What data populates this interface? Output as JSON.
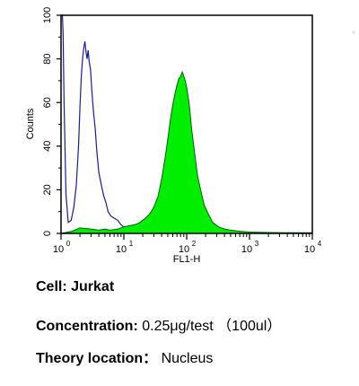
{
  "chart_data": {
    "type": "histogram",
    "xlabel": "FL1-H",
    "ylabel": "Counts",
    "x_scale": "log",
    "xlim": [
      1,
      10000
    ],
    "ylim": [
      0,
      100
    ],
    "x_ticks": [
      {
        "value": 1,
        "base": "10",
        "exp": "0"
      },
      {
        "value": 10,
        "base": "10",
        "exp": "1"
      },
      {
        "value": 100,
        "base": "10",
        "exp": "2"
      },
      {
        "value": 1000,
        "base": "10",
        "exp": "3"
      },
      {
        "value": 10000,
        "base": "10",
        "exp": "4"
      }
    ],
    "y_ticks": [
      "0",
      "20",
      "40",
      "60",
      "80",
      "100"
    ],
    "series": [
      {
        "role": "control",
        "style": "outline",
        "color": "#1a1aa8",
        "points": [
          [
            1.0,
            100
          ],
          [
            1.05,
            100
          ],
          [
            1.08,
            92
          ],
          [
            1.12,
            60
          ],
          [
            1.2,
            18
          ],
          [
            1.3,
            5
          ],
          [
            1.45,
            6
          ],
          [
            1.6,
            12
          ],
          [
            1.75,
            22
          ],
          [
            1.9,
            40
          ],
          [
            2.0,
            58
          ],
          [
            2.1,
            72
          ],
          [
            2.2,
            80
          ],
          [
            2.3,
            85
          ],
          [
            2.4,
            88
          ],
          [
            2.5,
            83
          ],
          [
            2.6,
            80
          ],
          [
            2.7,
            84
          ],
          [
            2.8,
            79
          ],
          [
            2.95,
            75
          ],
          [
            3.1,
            65
          ],
          [
            3.3,
            55
          ],
          [
            3.5,
            48
          ],
          [
            3.7,
            38
          ],
          [
            4.0,
            28
          ],
          [
            4.4,
            22
          ],
          [
            4.8,
            17
          ],
          [
            5.2,
            14
          ],
          [
            5.6,
            10
          ],
          [
            6.2,
            8
          ],
          [
            7.0,
            7
          ],
          [
            8.0,
            6
          ],
          [
            9.0,
            4
          ],
          [
            10.0,
            3
          ],
          [
            11.5,
            2
          ],
          [
            13.0,
            1.5
          ],
          [
            15.0,
            1
          ],
          [
            20.0,
            0.5
          ],
          [
            30.0,
            0.3
          ],
          [
            60.0,
            0
          ]
        ]
      },
      {
        "role": "sample",
        "style": "filled",
        "color": "#00ee00",
        "points": [
          [
            1.0,
            0
          ],
          [
            1.5,
            1
          ],
          [
            2.0,
            2.5
          ],
          [
            3.0,
            2
          ],
          [
            4.0,
            1.5
          ],
          [
            5.0,
            2
          ],
          [
            6.0,
            1.5
          ],
          [
            8.0,
            2
          ],
          [
            10.0,
            3
          ],
          [
            12.0,
            3.5
          ],
          [
            15.0,
            4
          ],
          [
            18.0,
            5
          ],
          [
            22.0,
            7
          ],
          [
            26.0,
            9
          ],
          [
            30.0,
            12
          ],
          [
            35.0,
            17
          ],
          [
            40.0,
            25
          ],
          [
            45.0,
            34
          ],
          [
            50.0,
            43
          ],
          [
            55.0,
            52
          ],
          [
            60.0,
            59
          ],
          [
            65.0,
            64
          ],
          [
            70.0,
            68
          ],
          [
            75.0,
            71
          ],
          [
            80.0,
            72
          ],
          [
            85.0,
            74
          ],
          [
            90.0,
            72
          ],
          [
            95.0,
            70
          ],
          [
            100.0,
            67
          ],
          [
            110.0,
            59
          ],
          [
            120.0,
            48
          ],
          [
            135.0,
            36
          ],
          [
            150.0,
            26
          ],
          [
            170.0,
            19
          ],
          [
            190.0,
            13
          ],
          [
            220.0,
            9
          ],
          [
            260.0,
            5
          ],
          [
            320.0,
            3
          ],
          [
            400.0,
            2
          ],
          [
            500.0,
            1.5
          ],
          [
            700.0,
            1
          ],
          [
            1000.0,
            0.6
          ],
          [
            2000.0,
            0.4
          ],
          [
            4000.0,
            0.3
          ],
          [
            10000.0,
            0.3
          ]
        ]
      }
    ]
  },
  "info": {
    "cell_label": "Cell:",
    "cell_value": "Jurkat",
    "concentration_label": "Concentration:",
    "concentration_value": "0.25μg/test （100ul）",
    "location_label": "Theory location：",
    "location_value": "Nucleus"
  }
}
